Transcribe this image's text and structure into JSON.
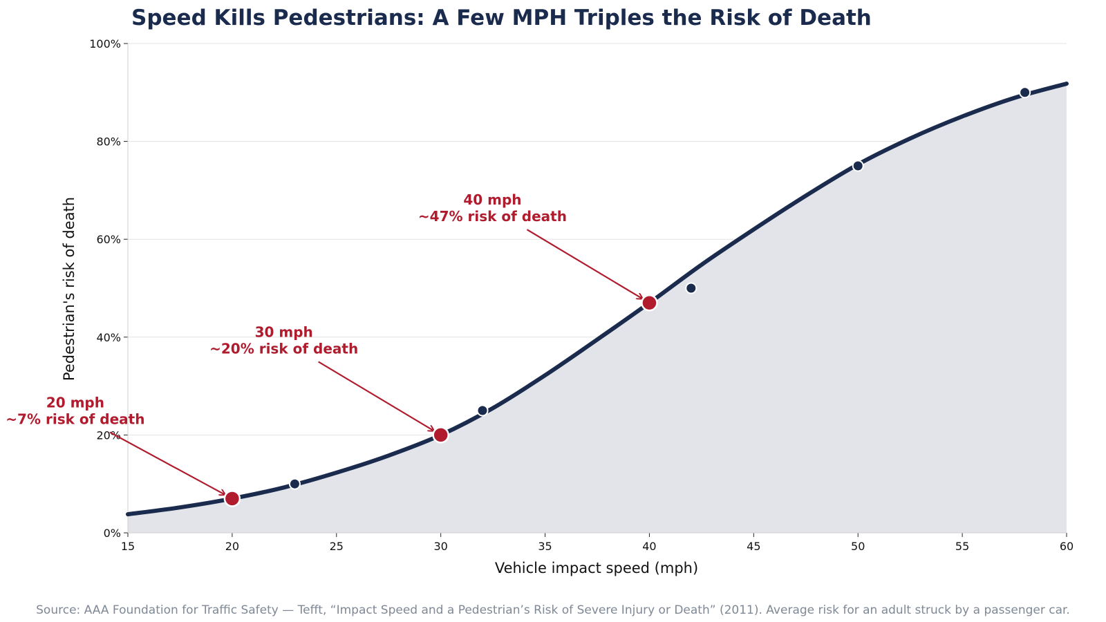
{
  "chart_data": {
    "type": "line",
    "title": "Speed Kills Pedestrians: A Few MPH Triples the Risk of Death",
    "xlabel": "Vehicle impact speed (mph)",
    "ylabel": "Pedestrian's risk of death",
    "xlim": [
      15,
      60
    ],
    "ylim": [
      0,
      100
    ],
    "x_ticks": [
      15,
      20,
      25,
      30,
      35,
      40,
      45,
      50,
      55,
      60
    ],
    "y_ticks": [
      0,
      20,
      40,
      60,
      80,
      100
    ],
    "y_tick_suffix": "%",
    "grid": "horizontal",
    "curve": {
      "x": [
        15,
        17.5,
        20,
        22.5,
        25,
        27.5,
        30,
        32.5,
        35,
        37.5,
        40,
        42.5,
        45,
        47.5,
        50,
        52.5,
        55,
        57.5,
        60
      ],
      "y": [
        3.8,
        5.2,
        7.0,
        9.3,
        12.3,
        15.8,
        20.0,
        25.5,
        32.2,
        39.5,
        47.0,
        54.8,
        62.0,
        68.9,
        75.3,
        80.6,
        85.1,
        88.9,
        91.8
      ],
      "fill": "area"
    },
    "observed_points": {
      "x": [
        23,
        32,
        42,
        50,
        58
      ],
      "y": [
        10,
        25,
        50,
        75,
        90
      ]
    },
    "highlight_points": [
      {
        "x": 20,
        "y": 7,
        "label_line1": "20 mph",
        "label_line2": "~7% risk of death"
      },
      {
        "x": 30,
        "y": 20,
        "label_line1": "30 mph",
        "label_line2": "~20% risk of death"
      },
      {
        "x": 40,
        "y": 47,
        "label_line1": "40 mph",
        "label_line2": "~47% risk of death"
      }
    ],
    "source": "Source: AAA Foundation for Traffic Safety — Tefft, “Impact Speed and a Pedestrian’s Risk of Severe Injury or Death” (2011). Average risk for an adult struck by a passenger car.",
    "colors": {
      "line": "#1a2b4e",
      "fill": "#e2e4e9",
      "highlight": "#b01c2e",
      "grid": "#e3e3e3",
      "source_text": "#7f8895"
    }
  }
}
